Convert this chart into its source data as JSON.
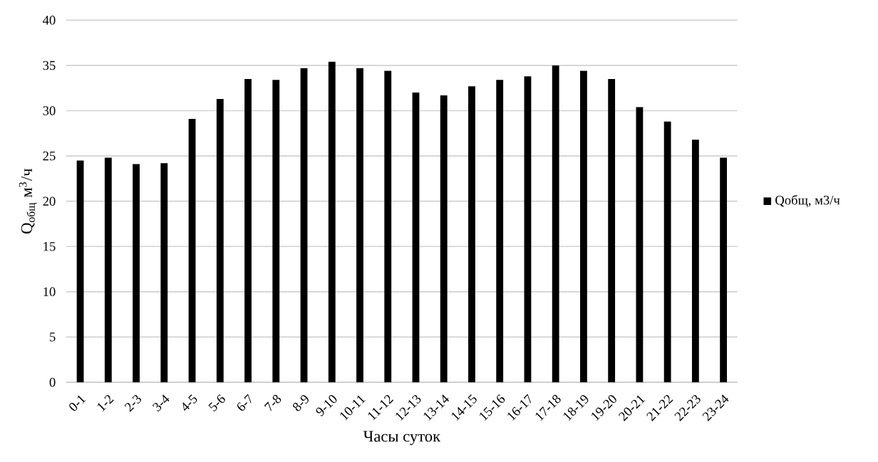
{
  "chart_data": {
    "type": "bar",
    "xlabel": "Часы суток",
    "ylabel": "Q$_{общ}$ м$^{3}$/ч",
    "categories": [
      "0-1",
      "1-2",
      "2-3",
      "3-4",
      "4-5",
      "5-6",
      "6-7",
      "7-8",
      "8-9",
      "9-10",
      "10-11",
      "11-12",
      "12-13",
      "13-14",
      "14-15",
      "15-16",
      "16-17",
      "17-18",
      "18-19",
      "19-20",
      "20-21",
      "21-22",
      "22-23",
      "23-24"
    ],
    "series": [
      {
        "name": "Qобщ, м3/ч",
        "color": "#000000",
        "values": [
          24.5,
          24.8,
          24.1,
          24.2,
          29.1,
          31.3,
          33.5,
          33.4,
          34.7,
          35.4,
          34.7,
          34.4,
          32.0,
          31.7,
          32.7,
          33.4,
          33.8,
          35.0,
          34.4,
          33.5,
          30.4,
          28.8,
          26.8,
          24.8
        ]
      }
    ],
    "ylim": [
      0,
      40
    ],
    "yticks": [
      0,
      5,
      10,
      15,
      20,
      25,
      30,
      35,
      40
    ],
    "grid": "y",
    "legend": "right"
  }
}
